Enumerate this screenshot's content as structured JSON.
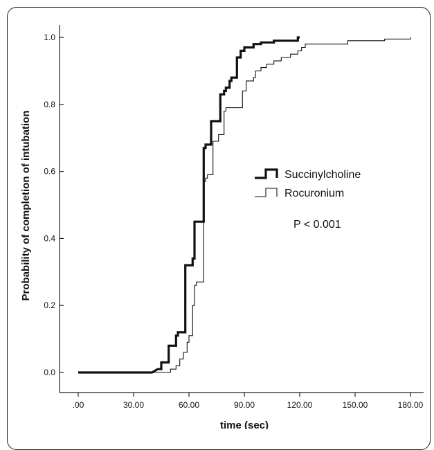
{
  "chart_data": {
    "type": "line",
    "step": true,
    "title": "",
    "xlabel": "time (sec)",
    "ylabel": "Probability of completion of intubation",
    "xlim": [
      0,
      180
    ],
    "ylim": [
      0,
      1
    ],
    "x_ticks": [
      0,
      30,
      60,
      90,
      120,
      150,
      180
    ],
    "x_tick_labels": [
      ".00",
      "30.00",
      "60.00",
      "90.00",
      "120.00",
      "150.00",
      "180.00"
    ],
    "y_ticks": [
      0,
      0.2,
      0.4,
      0.6,
      0.8,
      1.0
    ],
    "y_tick_labels": [
      "0.0",
      "0.2",
      "0.4",
      "0.6",
      "0.8",
      "1.0"
    ],
    "grid": false,
    "legend_position": "center-right",
    "annotation": "P < 0.001",
    "series": [
      {
        "name": "Succinylcholine",
        "style": "thick",
        "color": "#111111",
        "points": [
          [
            0,
            0
          ],
          [
            40,
            0
          ],
          [
            43,
            0.01
          ],
          [
            45,
            0.01
          ],
          [
            45,
            0.03
          ],
          [
            49,
            0.03
          ],
          [
            49,
            0.08
          ],
          [
            53,
            0.08
          ],
          [
            53,
            0.11
          ],
          [
            54,
            0.11
          ],
          [
            54,
            0.12
          ],
          [
            58,
            0.12
          ],
          [
            58,
            0.32
          ],
          [
            62,
            0.32
          ],
          [
            62,
            0.34
          ],
          [
            63,
            0.34
          ],
          [
            63,
            0.45
          ],
          [
            68,
            0.45
          ],
          [
            68,
            0.67
          ],
          [
            69,
            0.67
          ],
          [
            69,
            0.68
          ],
          [
            72,
            0.68
          ],
          [
            72,
            0.75
          ],
          [
            77,
            0.75
          ],
          [
            77,
            0.83
          ],
          [
            79,
            0.83
          ],
          [
            79,
            0.84
          ],
          [
            80,
            0.84
          ],
          [
            80,
            0.85
          ],
          [
            82,
            0.85
          ],
          [
            82,
            0.87
          ],
          [
            83,
            0.87
          ],
          [
            83,
            0.88
          ],
          [
            86,
            0.88
          ],
          [
            86,
            0.94
          ],
          [
            88,
            0.94
          ],
          [
            88,
            0.96
          ],
          [
            90,
            0.96
          ],
          [
            90,
            0.97
          ],
          [
            95,
            0.97
          ],
          [
            95,
            0.98
          ],
          [
            99,
            0.98
          ],
          [
            99,
            0.985
          ],
          [
            106,
            0.985
          ],
          [
            106,
            0.99
          ],
          [
            119,
            0.99
          ],
          [
            119,
            1.0
          ],
          [
            120,
            1.0
          ]
        ]
      },
      {
        "name": "Rocuronium",
        "style": "thin",
        "color": "#111111",
        "points": [
          [
            0,
            0
          ],
          [
            50,
            0
          ],
          [
            50,
            0.01
          ],
          [
            53,
            0.01
          ],
          [
            53,
            0.02
          ],
          [
            55,
            0.02
          ],
          [
            55,
            0.04
          ],
          [
            57,
            0.04
          ],
          [
            57,
            0.06
          ],
          [
            59,
            0.06
          ],
          [
            59,
            0.09
          ],
          [
            60,
            0.09
          ],
          [
            60,
            0.11
          ],
          [
            62,
            0.11
          ],
          [
            62,
            0.2
          ],
          [
            63,
            0.2
          ],
          [
            63,
            0.26
          ],
          [
            64,
            0.26
          ],
          [
            64,
            0.27
          ],
          [
            68,
            0.27
          ],
          [
            68,
            0.57
          ],
          [
            69,
            0.57
          ],
          [
            69,
            0.58
          ],
          [
            70,
            0.58
          ],
          [
            70,
            0.59
          ],
          [
            73,
            0.59
          ],
          [
            73,
            0.69
          ],
          [
            76,
            0.69
          ],
          [
            76,
            0.71
          ],
          [
            79,
            0.71
          ],
          [
            79,
            0.78
          ],
          [
            80,
            0.78
          ],
          [
            80,
            0.79
          ],
          [
            89,
            0.79
          ],
          [
            89,
            0.84
          ],
          [
            91,
            0.84
          ],
          [
            91,
            0.87
          ],
          [
            95,
            0.87
          ],
          [
            95,
            0.88
          ],
          [
            96,
            0.88
          ],
          [
            96,
            0.9
          ],
          [
            99,
            0.9
          ],
          [
            99,
            0.91
          ],
          [
            102,
            0.91
          ],
          [
            102,
            0.92
          ],
          [
            106,
            0.92
          ],
          [
            106,
            0.93
          ],
          [
            110,
            0.93
          ],
          [
            110,
            0.94
          ],
          [
            115,
            0.94
          ],
          [
            115,
            0.95
          ],
          [
            119,
            0.95
          ],
          [
            119,
            0.96
          ],
          [
            121,
            0.96
          ],
          [
            121,
            0.97
          ],
          [
            123,
            0.97
          ],
          [
            123,
            0.98
          ],
          [
            146,
            0.98
          ],
          [
            146,
            0.99
          ],
          [
            166,
            0.99
          ],
          [
            166,
            0.995
          ],
          [
            180,
            0.995
          ],
          [
            180,
            1.0
          ]
        ]
      }
    ]
  }
}
